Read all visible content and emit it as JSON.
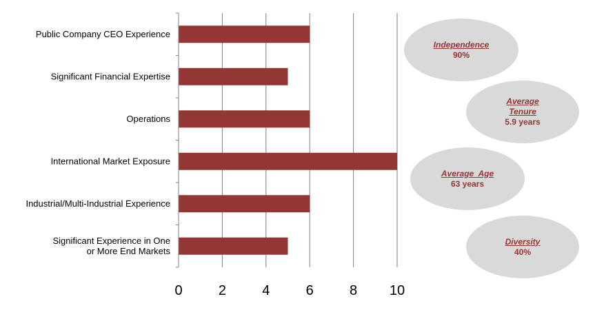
{
  "chart_data": {
    "type": "bar",
    "orientation": "horizontal",
    "categories": [
      "Public Company CEO Experience",
      "Significant Financial Expertise",
      "Operations",
      "International Market Exposure",
      "Industrial/Multi-Industrial Experience",
      "Significant Experience in One or More End Markets"
    ],
    "category_lines": [
      [
        "Public Company CEO Experience"
      ],
      [
        "Significant Financial Expertise"
      ],
      [
        "Operations"
      ],
      [
        "International Market Exposure"
      ],
      [
        "Industrial/Multi-Industrial Experience"
      ],
      [
        "Significant Experience in One",
        "or More End Markets"
      ]
    ],
    "values": [
      6,
      5,
      6,
      10,
      6,
      5
    ],
    "xlim": [
      0,
      10
    ],
    "xticks": [
      0,
      2,
      4,
      6,
      8,
      10
    ],
    "xlabel": "",
    "ylabel": "",
    "title": "",
    "grid": "vertical",
    "bar_color": "#943634",
    "grid_color": "#7f7f7f"
  },
  "badges": [
    {
      "title": "Independence",
      "value": "90%"
    },
    {
      "title": "Average Tenure",
      "title_lines": [
        "Average",
        "Tenure"
      ],
      "value": "5.9 years"
    },
    {
      "title": "Average  Age",
      "value": "63 years"
    },
    {
      "title": "Diversity",
      "value": "40%"
    }
  ],
  "colors": {
    "badge_fill": "#d9d9d9",
    "badge_text": "#943634"
  }
}
